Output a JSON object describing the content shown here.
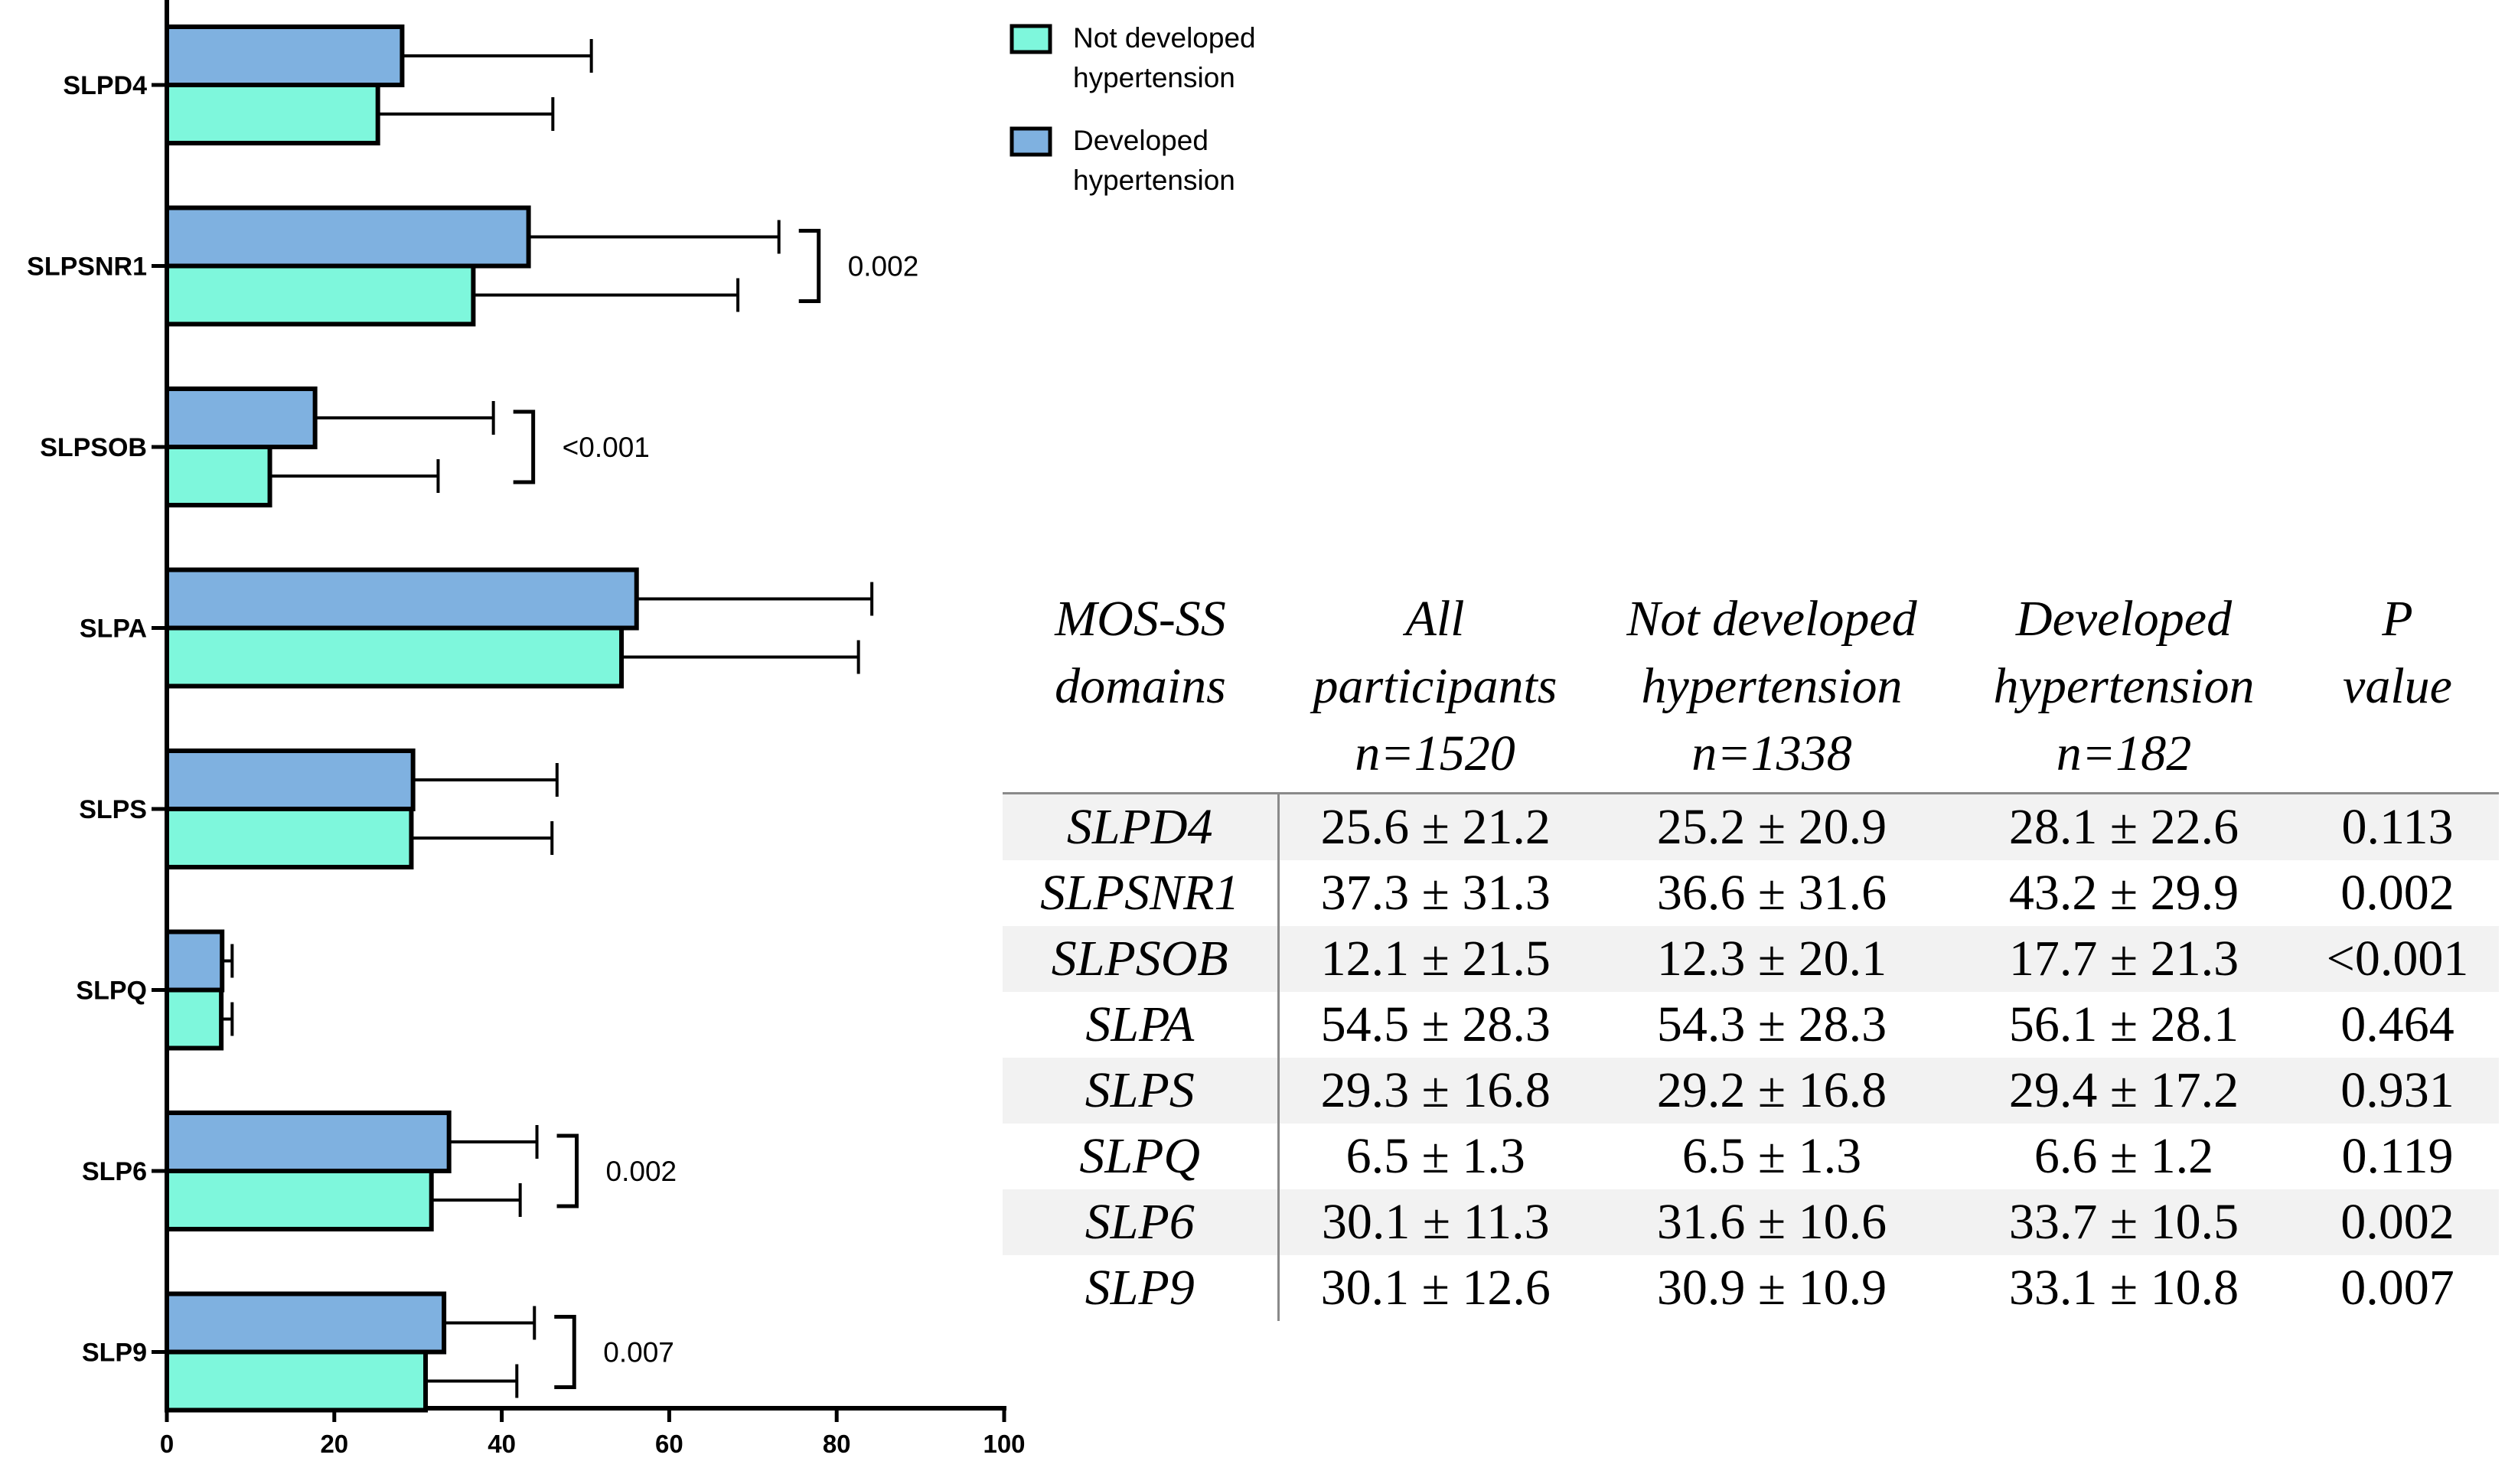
{
  "chart_data": {
    "type": "bar",
    "orientation": "horizontal",
    "categories": [
      "SLPD4",
      "SLPSNR1",
      "SLPSOB",
      "SLPA",
      "SLPS",
      "SLPQ",
      "SLP6",
      "SLP9"
    ],
    "series": [
      {
        "name": "Not developed hypertension",
        "color": "#7ef7dc",
        "values": [
          25.2,
          36.6,
          12.3,
          54.3,
          29.2,
          6.5,
          31.6,
          30.9
        ],
        "errors": [
          20.9,
          31.6,
          20.1,
          28.3,
          16.8,
          1.3,
          10.6,
          10.9
        ]
      },
      {
        "name": "Developed hypertension",
        "color": "#7fb1e0",
        "values": [
          28.1,
          43.2,
          17.7,
          56.1,
          29.4,
          6.6,
          33.7,
          33.1
        ],
        "errors": [
          22.6,
          29.9,
          21.3,
          28.1,
          17.2,
          1.2,
          10.5,
          10.8
        ]
      }
    ],
    "xlim": [
      0,
      100
    ],
    "xticks": [
      "0",
      "20",
      "40",
      "60",
      "80",
      "100"
    ],
    "xlabel": "",
    "ylabel": "",
    "title": "",
    "legend_position": "top-right",
    "significance": [
      {
        "category": "SLPSNR1",
        "label": "0.002"
      },
      {
        "category": "SLPSOB",
        "label": "<0.001"
      },
      {
        "category": "SLP6",
        "label": "0.002"
      },
      {
        "category": "SLP9",
        "label": "0.007"
      }
    ]
  },
  "legend": {
    "items": [
      {
        "line1": "Not developed",
        "line2": "hypertension",
        "color": "#7ef7dc"
      },
      {
        "line1": "Developed",
        "line2": "hypertension",
        "color": "#7fb1e0"
      }
    ]
  },
  "table": {
    "headers": [
      [
        "MOS-SS",
        "domains"
      ],
      [
        "All",
        "participants",
        "n=1520"
      ],
      [
        "Not developed",
        "hypertension",
        "n=1338"
      ],
      [
        "Developed",
        "hypertension",
        "n=182"
      ],
      [
        "P",
        "value"
      ]
    ],
    "rows": [
      [
        "SLPD4",
        "25.6 ± 21.2",
        "25.2 ± 20.9",
        "28.1 ± 22.6",
        "0.113"
      ],
      [
        "SLPSNR1",
        "37.3 ± 31.3",
        "36.6 ± 31.6",
        "43.2 ± 29.9",
        "0.002"
      ],
      [
        "SLPSOB",
        "12.1 ± 21.5",
        "12.3 ± 20.1",
        "17.7 ± 21.3",
        "<0.001"
      ],
      [
        "SLPA",
        "54.5 ± 28.3",
        "54.3 ± 28.3",
        "56.1 ± 28.1",
        "0.464"
      ],
      [
        "SLPS",
        "29.3 ± 16.8",
        "29.2 ± 16.8",
        "29.4 ± 17.2",
        "0.931"
      ],
      [
        "SLPQ",
        "6.5 ± 1.3",
        "6.5 ± 1.3",
        "6.6 ± 1.2",
        "0.119"
      ],
      [
        "SLP6",
        "30.1 ± 11.3",
        "31.6 ± 10.6",
        "33.7 ± 10.5",
        "0.002"
      ],
      [
        "SLP9",
        "30.1 ± 12.6",
        "30.9 ± 10.9",
        "33.1 ± 10.8",
        "0.007"
      ]
    ]
  }
}
